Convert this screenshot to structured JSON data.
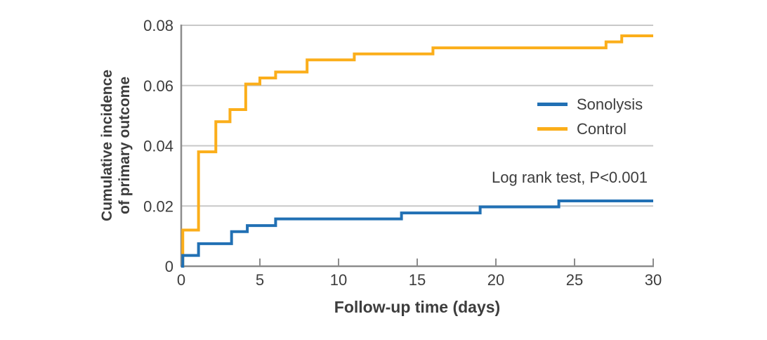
{
  "figure": {
    "colors": {
      "background": "#ffffff",
      "text": "#3d3d3d",
      "grid": "#c8c8c8",
      "axis": "#8c8c8c"
    }
  },
  "chart_data": {
    "type": "line",
    "subtype": "step-post",
    "title": "",
    "xlabel": "Follow-up time (days)",
    "ylabel": "Cumulative incidence of primary outcome",
    "ylabel_lines": [
      "Cumulative incidence",
      "of primary outcome"
    ],
    "xlim": [
      0,
      30
    ],
    "ylim": [
      0,
      0.08
    ],
    "xticks": [
      0,
      5,
      10,
      15,
      20,
      25,
      30
    ],
    "xtick_labels": [
      "0",
      "5",
      "10",
      "15",
      "20",
      "25",
      "30"
    ],
    "yticks": [
      0,
      0.02,
      0.04,
      0.06,
      0.08
    ],
    "ytick_labels": [
      "0",
      "0.02",
      "0.04",
      "0.06",
      "0.08"
    ],
    "grid": "horizontal-only",
    "legend_position": "inside-right",
    "annotation": "Log rank test, P<0.001",
    "legend": [
      {
        "label": "Sonolysis",
        "color": "#2170b4"
      },
      {
        "label": "Control",
        "color": "#fbae1a"
      }
    ],
    "series": [
      {
        "name": "Control",
        "color": "#fbae1a",
        "x": [
          0,
          0.1,
          1.1,
          2.2,
          3.1,
          4.1,
          5,
          6,
          8,
          11,
          16,
          27,
          28,
          30
        ],
        "y": [
          0,
          0.012,
          0.038,
          0.048,
          0.052,
          0.0605,
          0.0625,
          0.0645,
          0.0685,
          0.0705,
          0.0725,
          0.0745,
          0.0765,
          0.0765
        ]
      },
      {
        "name": "Sonolysis",
        "color": "#2170b4",
        "x": [
          0,
          0.1,
          1.1,
          3.2,
          4.2,
          6,
          14,
          19,
          24,
          30
        ],
        "y": [
          0,
          0.0036,
          0.0075,
          0.0115,
          0.0135,
          0.0157,
          0.0177,
          0.0197,
          0.0217,
          0.0217
        ]
      }
    ]
  }
}
